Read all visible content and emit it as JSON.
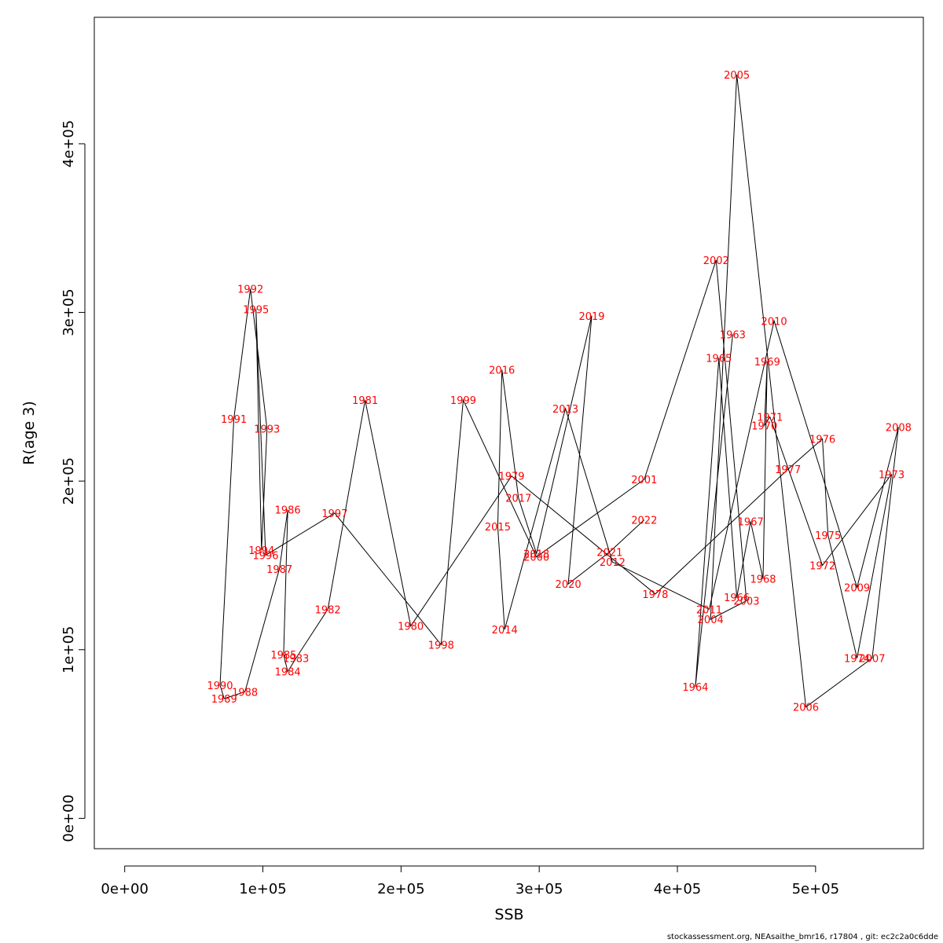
{
  "chart_data": {
    "type": "line",
    "xlabel": "SSB",
    "ylabel": "R(age 3)",
    "xlim": [
      -22000,
      578000
    ],
    "ylim": [
      -18000,
      475000
    ],
    "xticks": [
      {
        "value": 0,
        "label": "0e+00"
      },
      {
        "value": 100000,
        "label": "1e+05"
      },
      {
        "value": 200000,
        "label": "2e+05"
      },
      {
        "value": 300000,
        "label": "3e+05"
      },
      {
        "value": 400000,
        "label": "4e+05"
      },
      {
        "value": 500000,
        "label": "5e+05"
      }
    ],
    "yticks": [
      {
        "value": 0,
        "label": "0e+00"
      },
      {
        "value": 100000,
        "label": "1e+05"
      },
      {
        "value": 200000,
        "label": "2e+05"
      },
      {
        "value": 300000,
        "label": "3e+05"
      },
      {
        "value": 400000,
        "label": "4e+05"
      }
    ],
    "grid": false,
    "line_color": "#000000",
    "label_color": "#ff0000",
    "points": [
      {
        "year": "1963",
        "ssb": 440000,
        "r": 287000
      },
      {
        "year": "1964",
        "ssb": 413000,
        "r": 78000
      },
      {
        "year": "1965",
        "ssb": 430000,
        "r": 273000
      },
      {
        "year": "1966",
        "ssb": 443000,
        "r": 131000
      },
      {
        "year": "1967",
        "ssb": 453000,
        "r": 176000
      },
      {
        "year": "1968",
        "ssb": 462000,
        "r": 142000
      },
      {
        "year": "1969",
        "ssb": 465000,
        "r": 271000
      },
      {
        "year": "1970",
        "ssb": 463000,
        "r": 233000
      },
      {
        "year": "1971",
        "ssb": 467000,
        "r": 238000
      },
      {
        "year": "1972",
        "ssb": 505000,
        "r": 150000
      },
      {
        "year": "1973",
        "ssb": 555000,
        "r": 204000
      },
      {
        "year": "1974",
        "ssb": 530000,
        "r": 95000
      },
      {
        "year": "1975",
        "ssb": 509000,
        "r": 168000
      },
      {
        "year": "1976",
        "ssb": 505000,
        "r": 225000
      },
      {
        "year": "1977",
        "ssb": 480000,
        "r": 207000
      },
      {
        "year": "1978",
        "ssb": 384000,
        "r": 133000
      },
      {
        "year": "1979",
        "ssb": 280000,
        "r": 203000
      },
      {
        "year": "1980",
        "ssb": 207000,
        "r": 114000
      },
      {
        "year": "1981",
        "ssb": 174000,
        "r": 248000
      },
      {
        "year": "1982",
        "ssb": 147000,
        "r": 124000
      },
      {
        "year": "1983",
        "ssb": 124000,
        "r": 95000
      },
      {
        "year": "1984",
        "ssb": 118000,
        "r": 87000
      },
      {
        "year": "1985",
        "ssb": 115000,
        "r": 97000
      },
      {
        "year": "1986",
        "ssb": 118000,
        "r": 183000
      },
      {
        "year": "1987",
        "ssb": 112000,
        "r": 148000
      },
      {
        "year": "1988",
        "ssb": 87000,
        "r": 75000
      },
      {
        "year": "1989",
        "ssb": 72000,
        "r": 71000
      },
      {
        "year": "1990",
        "ssb": 69000,
        "r": 79000
      },
      {
        "year": "1991",
        "ssb": 79000,
        "r": 237000
      },
      {
        "year": "1992",
        "ssb": 91000,
        "r": 314000
      },
      {
        "year": "1993",
        "ssb": 103000,
        "r": 231000
      },
      {
        "year": "1994",
        "ssb": 99000,
        "r": 159000
      },
      {
        "year": "1995",
        "ssb": 95000,
        "r": 302000
      },
      {
        "year": "1996",
        "ssb": 102000,
        "r": 156000
      },
      {
        "year": "1997",
        "ssb": 152000,
        "r": 181000
      },
      {
        "year": "1998",
        "ssb": 229000,
        "r": 103000
      },
      {
        "year": "1999",
        "ssb": 245000,
        "r": 248000
      },
      {
        "year": "2000",
        "ssb": 298000,
        "r": 155000
      },
      {
        "year": "2001",
        "ssb": 376000,
        "r": 201000
      },
      {
        "year": "2002",
        "ssb": 428000,
        "r": 331000
      },
      {
        "year": "2003",
        "ssb": 450000,
        "r": 129000
      },
      {
        "year": "2004",
        "ssb": 424000,
        "r": 118000
      },
      {
        "year": "2005",
        "ssb": 443000,
        "r": 441000
      },
      {
        "year": "2006",
        "ssb": 493000,
        "r": 66000
      },
      {
        "year": "2007",
        "ssb": 541000,
        "r": 95000
      },
      {
        "year": "2008",
        "ssb": 560000,
        "r": 232000
      },
      {
        "year": "2009",
        "ssb": 530000,
        "r": 137000
      },
      {
        "year": "2010",
        "ssb": 470000,
        "r": 295000
      },
      {
        "year": "2011",
        "ssb": 423000,
        "r": 124000
      },
      {
        "year": "2012",
        "ssb": 353000,
        "r": 152000
      },
      {
        "year": "2013",
        "ssb": 319000,
        "r": 243000
      },
      {
        "year": "2014",
        "ssb": 275000,
        "r": 112000
      },
      {
        "year": "2015",
        "ssb": 270000,
        "r": 173000
      },
      {
        "year": "2016",
        "ssb": 273000,
        "r": 266000
      },
      {
        "year": "2017",
        "ssb": 285000,
        "r": 190000
      },
      {
        "year": "2018",
        "ssb": 298000,
        "r": 157000
      },
      {
        "year": "2019",
        "ssb": 338000,
        "r": 298000
      },
      {
        "year": "2020",
        "ssb": 321000,
        "r": 139000
      },
      {
        "year": "2021",
        "ssb": 351000,
        "r": 158000
      },
      {
        "year": "2022",
        "ssb": 376000,
        "r": 177000
      }
    ]
  },
  "footer": {
    "text": "stockassessment.org, NEAsaithe_bmr16, r17804 , git: ec2c2a0c6dde"
  }
}
